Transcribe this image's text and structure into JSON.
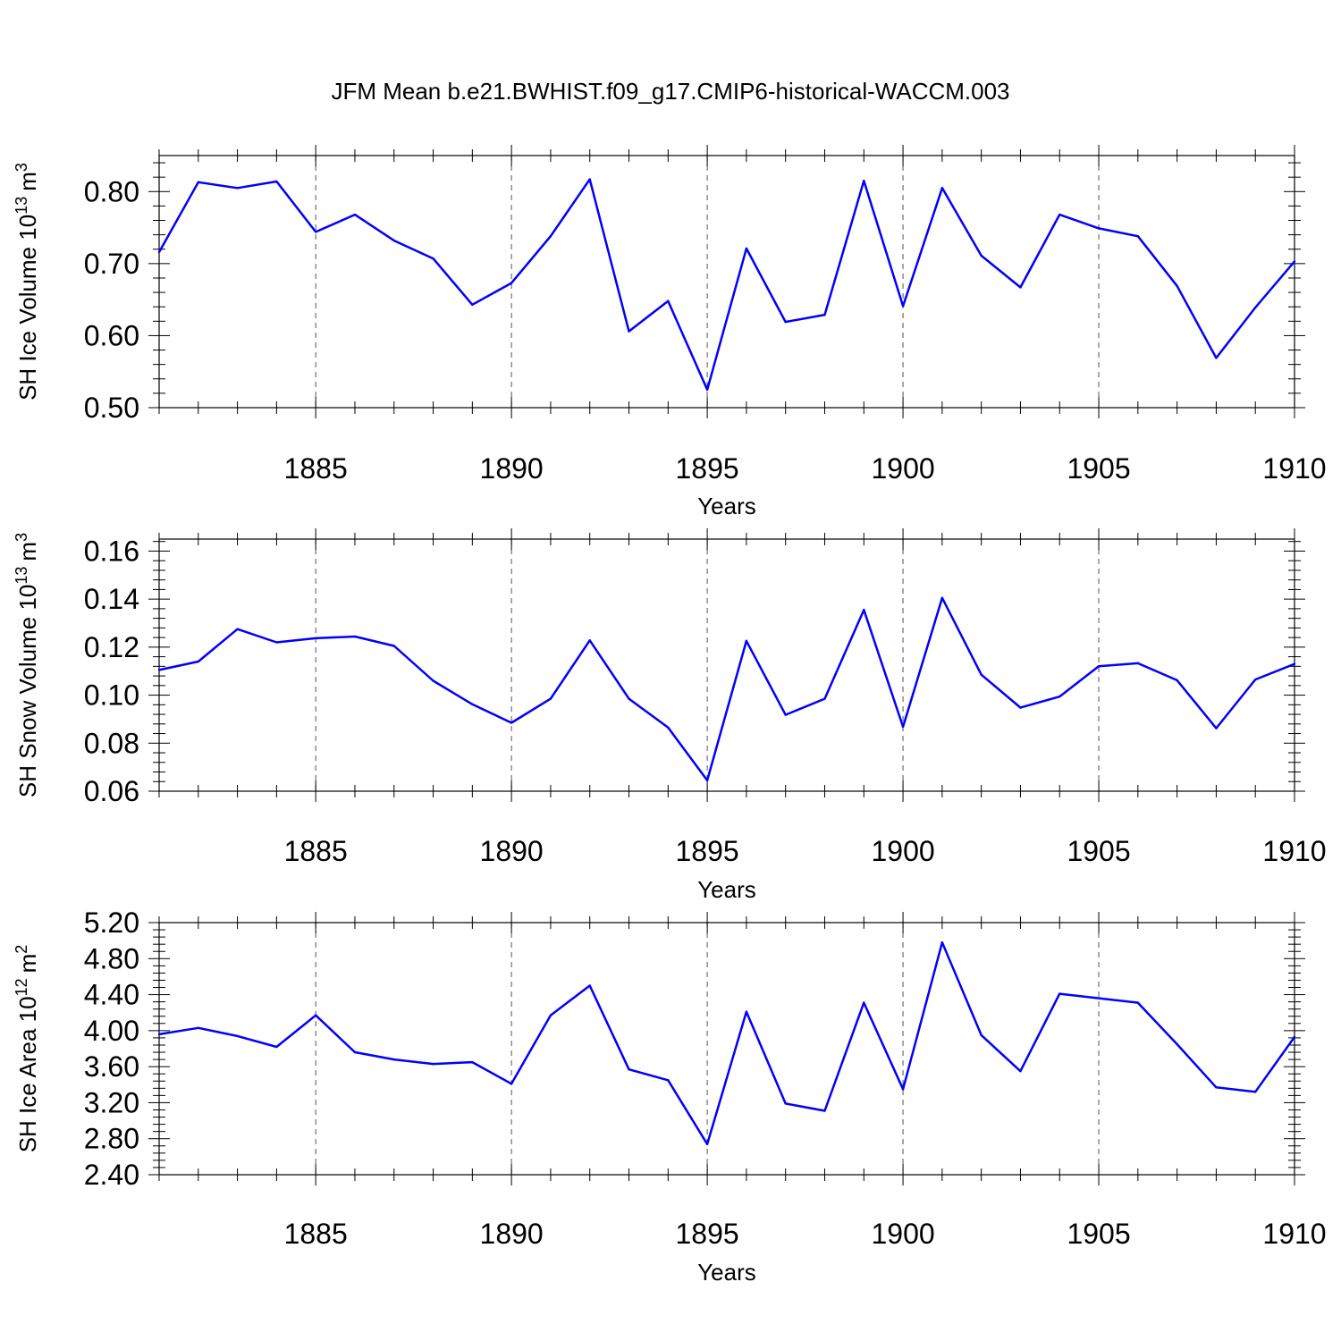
{
  "figure_title": "JFM Mean b.e21.BWHIST.f09_g17.CMIP6-historical-WACCM.003",
  "colors": {
    "line": "#0000ff",
    "axis": "#000000",
    "grid": "#555555"
  },
  "chart_data": [
    {
      "type": "line",
      "ylabel_text": "SH Ice Volume 10",
      "ylabel_exp": "13",
      "ylabel_unit": "m",
      "ylabel_unit_exp": "3",
      "xlabel": "Years",
      "xlim": [
        1881,
        1910
      ],
      "ylim": [
        0.5,
        0.85
      ],
      "ytick_values": [
        0.5,
        0.6,
        0.7,
        0.8
      ],
      "ytick_labels": [
        "0.50",
        "0.60",
        "0.70",
        "0.80"
      ],
      "xtick_values": [
        1885,
        1890,
        1895,
        1900,
        1905,
        1910
      ],
      "xtick_labels": [
        "1885",
        "1890",
        "1895",
        "1900",
        "1905",
        "1910"
      ],
      "x_grid": "dashed vertical at major x ticks",
      "x": [
        1881,
        1882,
        1883,
        1884,
        1885,
        1886,
        1887,
        1888,
        1889,
        1890,
        1891,
        1892,
        1893,
        1894,
        1895,
        1896,
        1897,
        1898,
        1899,
        1900,
        1901,
        1902,
        1903,
        1904,
        1905,
        1906,
        1907,
        1908,
        1909,
        1910
      ],
      "values": [
        0.716,
        0.813,
        0.805,
        0.814,
        0.744,
        0.768,
        0.732,
        0.707,
        0.643,
        0.673,
        0.738,
        0.817,
        0.606,
        0.648,
        0.525,
        0.721,
        0.619,
        0.629,
        0.815,
        0.641,
        0.805,
        0.711,
        0.667,
        0.768,
        0.749,
        0.738,
        0.669,
        0.569,
        0.639,
        0.703
      ]
    },
    {
      "type": "line",
      "ylabel_text": "SH Snow Volume 10",
      "ylabel_exp": "13",
      "ylabel_unit": "m",
      "ylabel_unit_exp": "3",
      "xlabel": "Years",
      "xlim": [
        1881,
        1910
      ],
      "ylim": [
        0.06,
        0.165
      ],
      "ytick_values": [
        0.06,
        0.08,
        0.1,
        0.12,
        0.14,
        0.16
      ],
      "ytick_labels": [
        "0.06",
        "0.08",
        "0.10",
        "0.12",
        "0.14",
        "0.16"
      ],
      "xtick_values": [
        1885,
        1890,
        1895,
        1900,
        1905,
        1910
      ],
      "xtick_labels": [
        "1885",
        "1890",
        "1895",
        "1900",
        "1905",
        "1910"
      ],
      "x_grid": "dashed vertical at major x ticks",
      "x": [
        1881,
        1882,
        1883,
        1884,
        1885,
        1886,
        1887,
        1888,
        1889,
        1890,
        1891,
        1892,
        1893,
        1894,
        1895,
        1896,
        1897,
        1898,
        1899,
        1900,
        1901,
        1902,
        1903,
        1904,
        1905,
        1906,
        1907,
        1908,
        1909,
        1910
      ],
      "values": [
        0.1105,
        0.114,
        0.1275,
        0.122,
        0.1237,
        0.1244,
        0.1205,
        0.106,
        0.0962,
        0.0885,
        0.0985,
        0.1228,
        0.0985,
        0.0865,
        0.0645,
        0.1226,
        0.0918,
        0.0985,
        0.1355,
        0.0868,
        0.1405,
        0.1085,
        0.0948,
        0.0994,
        0.112,
        0.1133,
        0.1062,
        0.0862,
        0.1065,
        0.113
      ]
    },
    {
      "type": "line",
      "ylabel_text": "SH Ice Area 10",
      "ylabel_exp": "12",
      "ylabel_unit": "m",
      "ylabel_unit_exp": "2",
      "xlabel": "Years",
      "xlim": [
        1881,
        1910
      ],
      "ylim": [
        2.4,
        5.2
      ],
      "ytick_values": [
        2.4,
        2.8,
        3.2,
        3.6,
        4.0,
        4.4,
        4.8,
        5.2
      ],
      "ytick_labels": [
        "2.40",
        "2.80",
        "3.20",
        "3.60",
        "4.00",
        "4.40",
        "4.80",
        "5.20"
      ],
      "xtick_values": [
        1885,
        1890,
        1895,
        1900,
        1905,
        1910
      ],
      "xtick_labels": [
        "1885",
        "1890",
        "1895",
        "1900",
        "1905",
        "1910"
      ],
      "x_grid": "dashed vertical at major x ticks",
      "x": [
        1881,
        1882,
        1883,
        1884,
        1885,
        1886,
        1887,
        1888,
        1889,
        1890,
        1891,
        1892,
        1893,
        1894,
        1895,
        1896,
        1897,
        1898,
        1899,
        1900,
        1901,
        1902,
        1903,
        1904,
        1905,
        1906,
        1907,
        1908,
        1909,
        1910
      ],
      "values": [
        3.96,
        4.03,
        3.94,
        3.82,
        4.17,
        3.76,
        3.68,
        3.63,
        3.65,
        3.41,
        4.17,
        4.5,
        3.57,
        3.45,
        2.74,
        4.21,
        3.19,
        3.11,
        4.31,
        3.35,
        4.98,
        3.95,
        3.55,
        4.41,
        4.36,
        4.31,
        3.85,
        3.37,
        3.32,
        3.93
      ]
    }
  ]
}
